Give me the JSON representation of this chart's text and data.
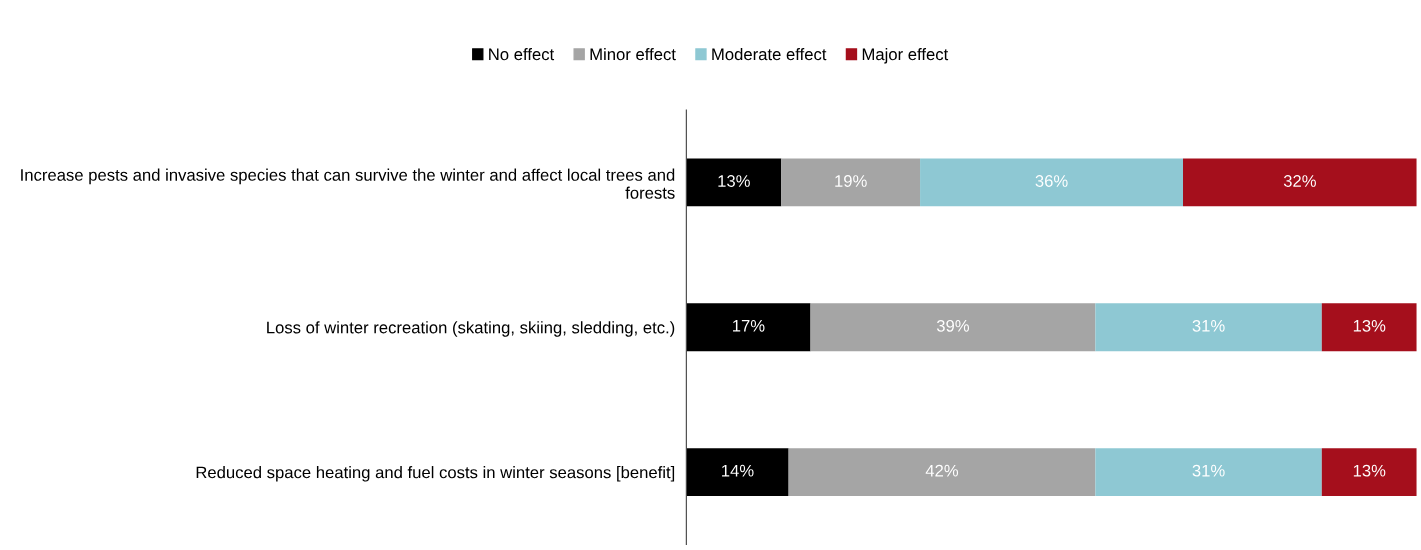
{
  "chart_data": {
    "type": "bar",
    "orientation": "horizontal",
    "stacked": true,
    "categories": [
      "Increase pests and invasive species that can survive the winter and affect local trees and forests",
      "Loss of winter recreation (skating, skiing, sledding, etc.)",
      "Reduced space heating and fuel costs in winter seasons [benefit]"
    ],
    "series": [
      {
        "name": "No effect",
        "color": "#000000",
        "values": [
          13,
          17,
          14
        ],
        "value_labels": [
          "13%",
          "17%",
          "14%"
        ]
      },
      {
        "name": "Minor effect",
        "color": "#a5a5a5",
        "values": [
          19,
          39,
          42
        ],
        "value_labels": [
          "19%",
          "39%",
          "42%"
        ]
      },
      {
        "name": "Moderate effect",
        "color": "#8ec8d3",
        "values": [
          36,
          31,
          31
        ],
        "value_labels": [
          "36%",
          "31%",
          "31%"
        ]
      },
      {
        "name": "Major effect",
        "color": "#a50f1c",
        "values": [
          32,
          13,
          13
        ],
        "value_labels": [
          "32%",
          "13%",
          "13%"
        ]
      }
    ],
    "legend": "top",
    "grid": false,
    "tick_labels": "y"
  }
}
